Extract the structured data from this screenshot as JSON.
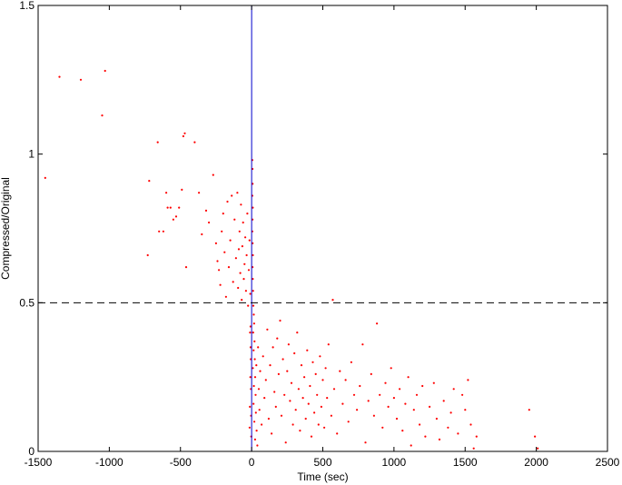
{
  "chart_data": {
    "type": "scatter",
    "title": "",
    "xlabel": "Time (sec)",
    "ylabel": "Compressed/Original",
    "xlim": [
      -1500,
      2500
    ],
    "ylim": [
      0,
      1.5
    ],
    "x_ticks": [
      -1500,
      -1000,
      -500,
      0,
      500,
      1000,
      1500,
      2000,
      2500
    ],
    "y_ticks": [
      0,
      0.5,
      1,
      1.5
    ],
    "x_tick_labels": [
      "-1500",
      "-1000",
      "-500",
      "0",
      "500",
      "1000",
      "1500",
      "2000",
      "2500"
    ],
    "y_tick_labels": [
      "0",
      "0.5",
      "1",
      "1.5"
    ],
    "grid": false,
    "legend": "none",
    "reference_lines": [
      {
        "orientation": "vertical",
        "value": 0,
        "style": "solid",
        "color": "#0000cc"
      },
      {
        "orientation": "horizontal",
        "value": 0.5,
        "style": "dashed",
        "color": "#000000"
      }
    ],
    "series": [
      {
        "marker_color": "#ff0000",
        "points": [
          [
            -1450,
            0.92
          ],
          [
            -1350,
            1.26
          ],
          [
            -1200,
            1.25
          ],
          [
            -1030,
            1.28
          ],
          [
            -1050,
            1.13
          ],
          [
            -720,
            0.91
          ],
          [
            -730,
            0.66
          ],
          [
            -660,
            1.04
          ],
          [
            -650,
            0.74
          ],
          [
            -620,
            0.74
          ],
          [
            -600,
            0.87
          ],
          [
            -590,
            0.82
          ],
          [
            -570,
            0.82
          ],
          [
            -550,
            0.78
          ],
          [
            -530,
            0.79
          ],
          [
            -510,
            0.82
          ],
          [
            -490,
            0.88
          ],
          [
            -480,
            1.06
          ],
          [
            -470,
            1.07
          ],
          [
            -460,
            0.62
          ],
          [
            -400,
            1.04
          ],
          [
            -370,
            0.87
          ],
          [
            -350,
            0.73
          ],
          [
            -320,
            0.81
          ],
          [
            -300,
            0.77
          ],
          [
            -270,
            0.93
          ],
          [
            -250,
            0.7
          ],
          [
            -240,
            0.64
          ],
          [
            -230,
            0.61
          ],
          [
            -220,
            0.56
          ],
          [
            -210,
            0.74
          ],
          [
            -200,
            0.8
          ],
          [
            -190,
            0.67
          ],
          [
            -180,
            0.52
          ],
          [
            -170,
            0.84
          ],
          [
            -160,
            0.62
          ],
          [
            -150,
            0.71
          ],
          [
            -140,
            0.86
          ],
          [
            -130,
            0.57
          ],
          [
            -120,
            0.78
          ],
          [
            -110,
            0.65
          ],
          [
            -100,
            0.87
          ],
          [
            -95,
            0.55
          ],
          [
            -90,
            0.68
          ],
          [
            -85,
            0.74
          ],
          [
            -80,
            0.6
          ],
          [
            -75,
            0.83
          ],
          [
            -70,
            0.51
          ],
          [
            -65,
            0.69
          ],
          [
            -60,
            0.77
          ],
          [
            -55,
            0.58
          ],
          [
            -50,
            0.63
          ],
          [
            -45,
            0.72
          ],
          [
            -40,
            0.54
          ],
          [
            -35,
            0.66
          ],
          [
            -30,
            0.8
          ],
          [
            -25,
            0.49
          ],
          [
            -20,
            0.61
          ],
          [
            -15,
            0.71
          ],
          [
            -10,
            0.53
          ],
          [
            -8,
            0.42
          ],
          [
            -6,
            0.31
          ],
          [
            -5,
            0.21
          ],
          [
            -4,
            0.12
          ],
          [
            -3,
            0.05
          ],
          [
            -7,
            0.35
          ],
          [
            -9,
            0.25
          ],
          [
            -12,
            0.15
          ],
          [
            -14,
            0.08
          ],
          [
            -11,
            0.4
          ],
          [
            5,
            0.98
          ],
          [
            6,
            0.95
          ],
          [
            7,
            0.9
          ],
          [
            5,
            0.86
          ],
          [
            8,
            0.82
          ],
          [
            6,
            0.78
          ],
          [
            5,
            0.74
          ],
          [
            7,
            0.7
          ],
          [
            9,
            0.66
          ],
          [
            6,
            0.62
          ],
          [
            8,
            0.58
          ],
          [
            10,
            0.54
          ],
          [
            12,
            0.49
          ],
          [
            15,
            0.46
          ],
          [
            18,
            0.43
          ],
          [
            11,
            0.4
          ],
          [
            20,
            0.37
          ],
          [
            14,
            0.34
          ],
          [
            22,
            0.31
          ],
          [
            9,
            0.28
          ],
          [
            25,
            0.25
          ],
          [
            16,
            0.22
          ],
          [
            28,
            0.19
          ],
          [
            13,
            0.16
          ],
          [
            30,
            0.13
          ],
          [
            19,
            0.1
          ],
          [
            35,
            0.07
          ],
          [
            24,
            0.04
          ],
          [
            40,
            0.02
          ],
          [
            33,
            0.29
          ],
          [
            45,
            0.35
          ],
          [
            50,
            0.21
          ],
          [
            55,
            0.14
          ],
          [
            60,
            0.27
          ],
          [
            70,
            0.09
          ],
          [
            80,
            0.32
          ],
          [
            90,
            0.18
          ],
          [
            100,
            0.24
          ],
          [
            110,
            0.41
          ],
          [
            120,
            0.11
          ],
          [
            130,
            0.29
          ],
          [
            140,
            0.06
          ],
          [
            150,
            0.35
          ],
          [
            160,
            0.2
          ],
          [
            170,
            0.15
          ],
          [
            180,
            0.38
          ],
          [
            190,
            0.26
          ],
          [
            200,
            0.44
          ],
          [
            210,
            0.12
          ],
          [
            220,
            0.31
          ],
          [
            230,
            0.19
          ],
          [
            240,
            0.03
          ],
          [
            250,
            0.27
          ],
          [
            260,
            0.36
          ],
          [
            270,
            0.17
          ],
          [
            280,
            0.23
          ],
          [
            290,
            0.09
          ],
          [
            300,
            0.33
          ],
          [
            310,
            0.14
          ],
          [
            320,
            0.4
          ],
          [
            330,
            0.21
          ],
          [
            340,
            0.07
          ],
          [
            350,
            0.29
          ],
          [
            360,
            0.18
          ],
          [
            370,
            0.25
          ],
          [
            380,
            0.11
          ],
          [
            390,
            0.34
          ],
          [
            400,
            0.16
          ],
          [
            410,
            0.22
          ],
          [
            420,
            0.05
          ],
          [
            430,
            0.3
          ],
          [
            440,
            0.13
          ],
          [
            450,
            0.26
          ],
          [
            460,
            0.19
          ],
          [
            470,
            0.09
          ],
          [
            480,
            0.32
          ],
          [
            490,
            0.15
          ],
          [
            500,
            0.24
          ],
          [
            510,
            0.08
          ],
          [
            520,
            0.28
          ],
          [
            530,
            0.18
          ],
          [
            540,
            0.36
          ],
          [
            560,
            0.12
          ],
          [
            570,
            0.51
          ],
          [
            580,
            0.21
          ],
          [
            600,
            0.06
          ],
          [
            620,
            0.27
          ],
          [
            640,
            0.16
          ],
          [
            660,
            0.24
          ],
          [
            680,
            0.1
          ],
          [
            700,
            0.3
          ],
          [
            720,
            0.19
          ],
          [
            740,
            0.14
          ],
          [
            760,
            0.22
          ],
          [
            780,
            0.36
          ],
          [
            800,
            0.03
          ],
          [
            820,
            0.17
          ],
          [
            840,
            0.26
          ],
          [
            860,
            0.12
          ],
          [
            880,
            0.43
          ],
          [
            900,
            0.19
          ],
          [
            920,
            0.08
          ],
          [
            940,
            0.23
          ],
          [
            960,
            0.15
          ],
          [
            980,
            0.28
          ],
          [
            1000,
            0.18
          ],
          [
            1020,
            0.11
          ],
          [
            1040,
            0.21
          ],
          [
            1060,
            0.07
          ],
          [
            1080,
            0.16
          ],
          [
            1100,
            0.25
          ],
          [
            1120,
            0.02
          ],
          [
            1140,
            0.14
          ],
          [
            1160,
            0.19
          ],
          [
            1180,
            0.09
          ],
          [
            1200,
            0.22
          ],
          [
            1220,
            0.05
          ],
          [
            1250,
            0.15
          ],
          [
            1280,
            0.23
          ],
          [
            1300,
            0.11
          ],
          [
            1320,
            0.04
          ],
          [
            1350,
            0.17
          ],
          [
            1380,
            0.08
          ],
          [
            1400,
            0.13
          ],
          [
            1420,
            0.21
          ],
          [
            1450,
            0.06
          ],
          [
            1480,
            0.19
          ],
          [
            1500,
            0.14
          ],
          [
            1520,
            0.24
          ],
          [
            1540,
            0.09
          ],
          [
            1560,
            0.01
          ],
          [
            1580,
            0.05
          ],
          [
            1950,
            0.14
          ],
          [
            1990,
            0.05
          ],
          [
            2010,
            0.01
          ]
        ]
      }
    ]
  }
}
